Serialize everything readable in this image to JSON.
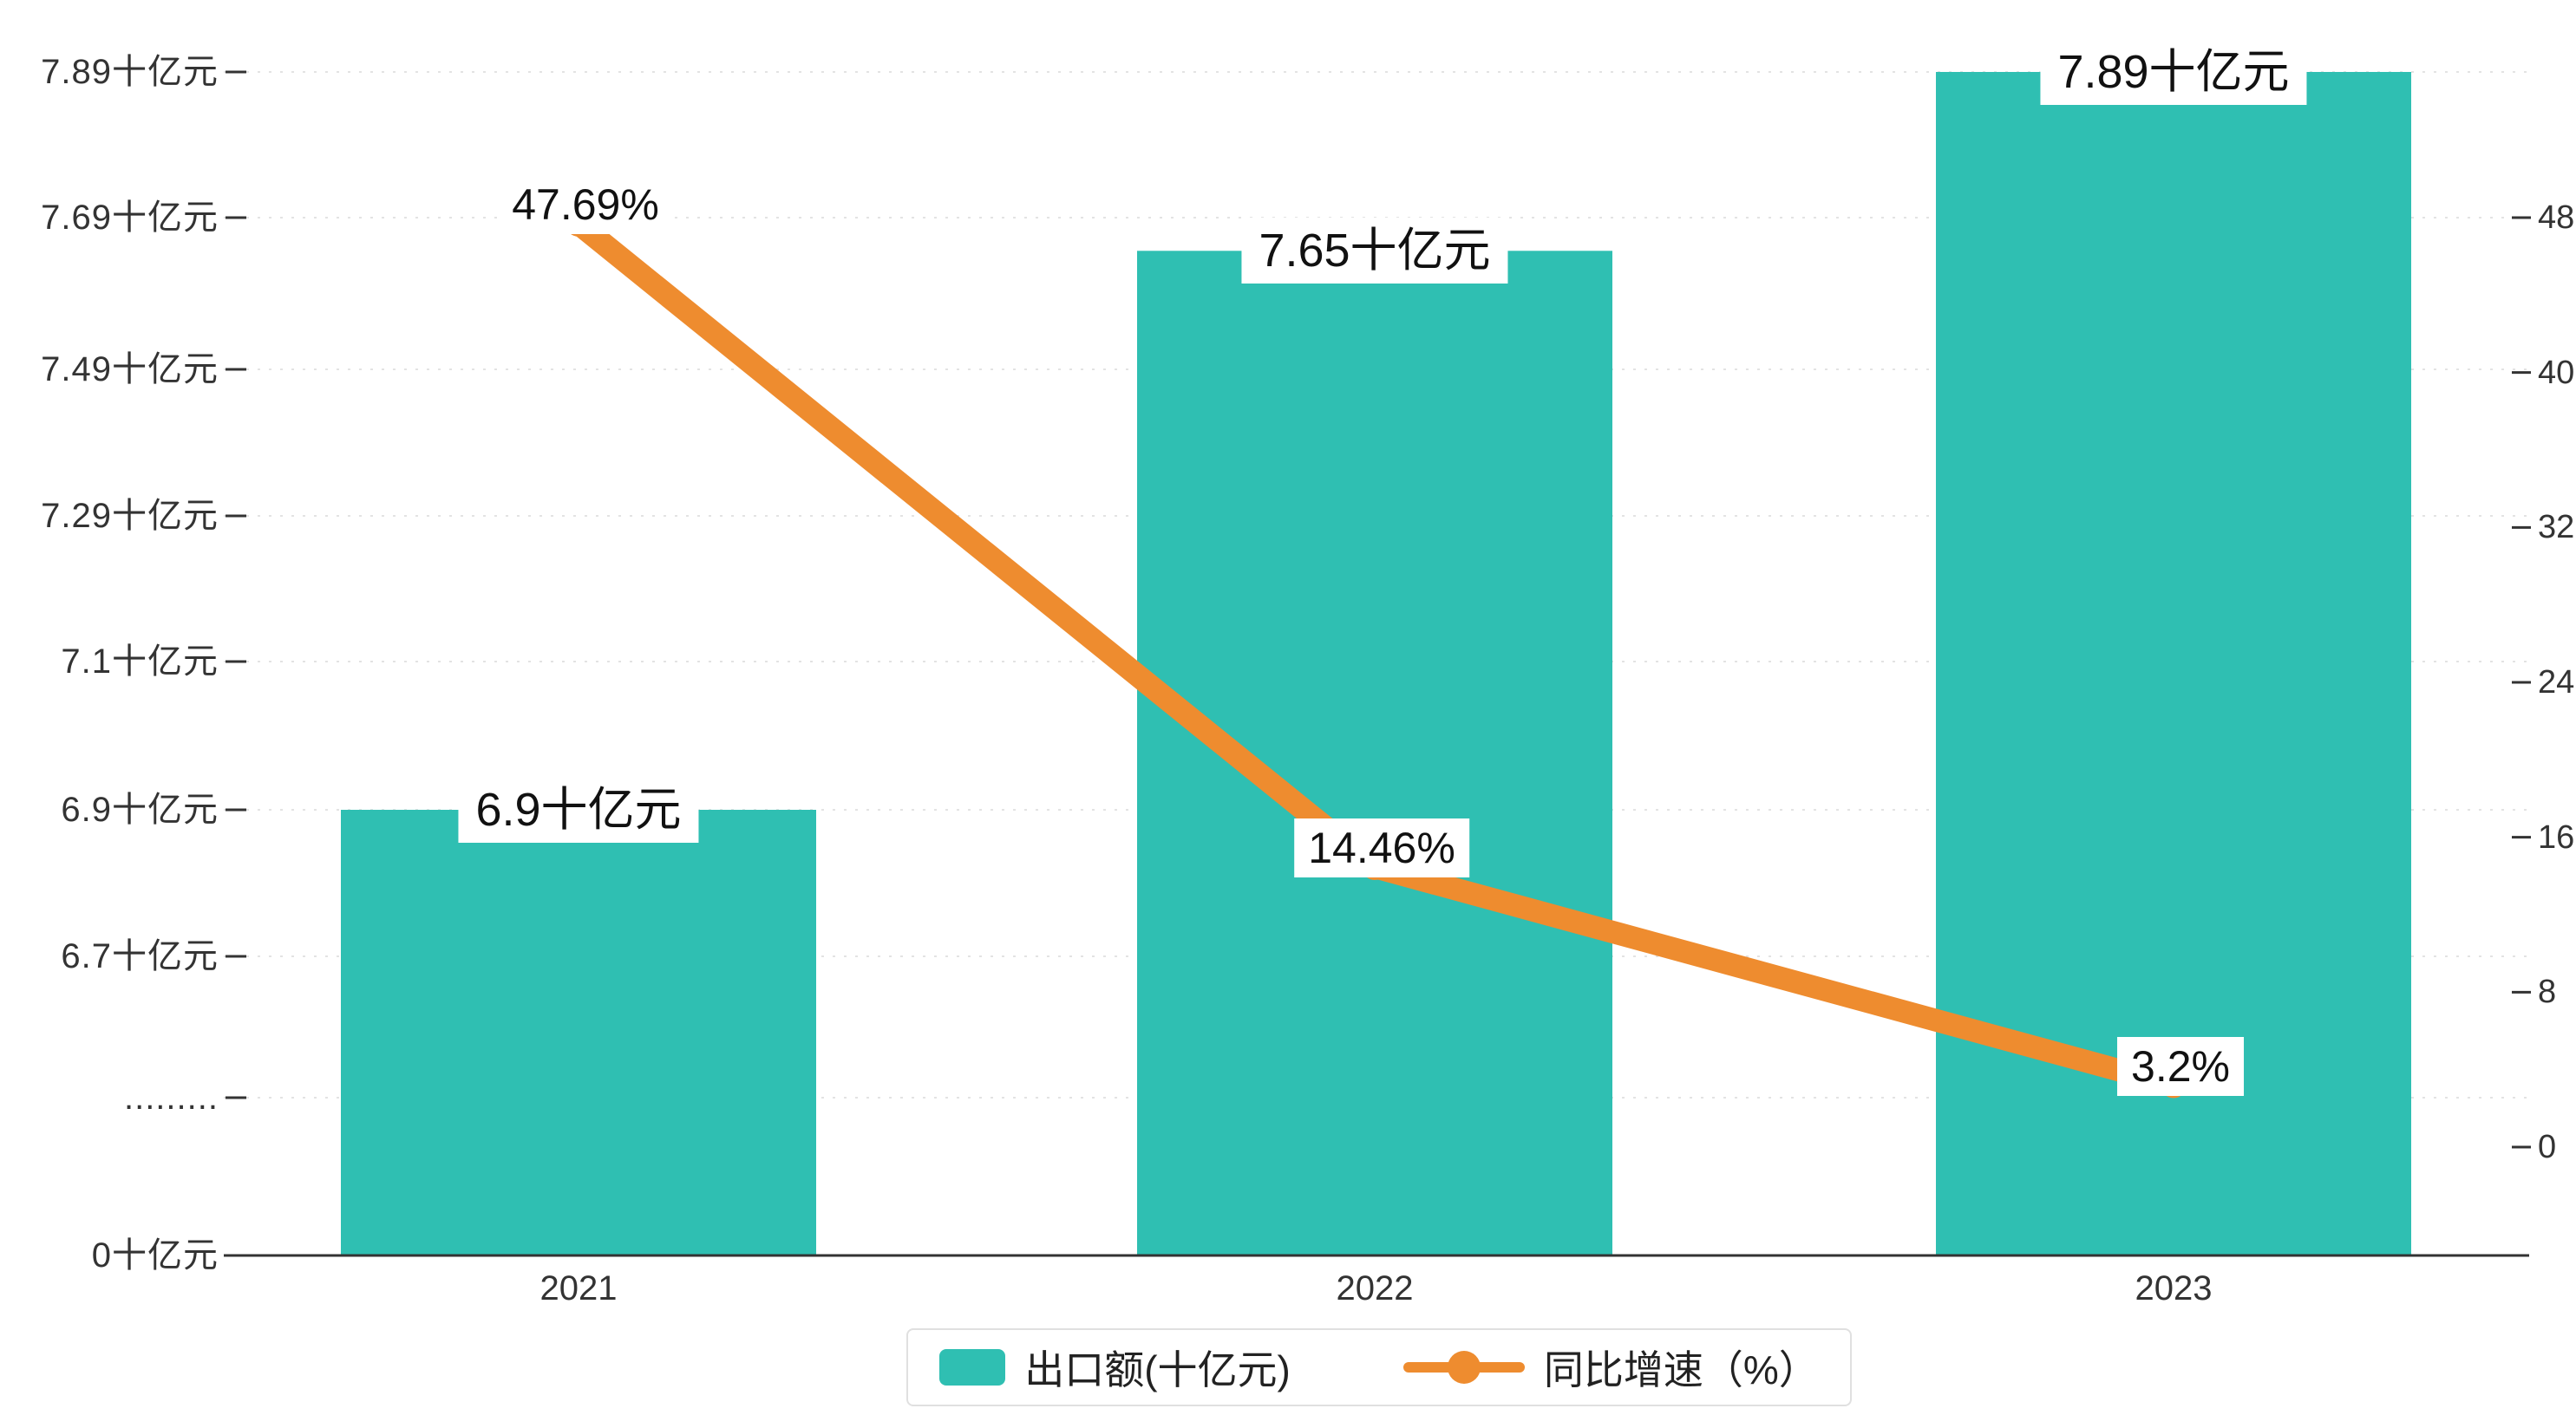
{
  "chart_data": {
    "type": "bar+line",
    "categories": [
      "2021",
      "2022",
      "2023"
    ],
    "series": [
      {
        "name": "出口额(十亿元)",
        "type": "bar",
        "axis": "left",
        "values": [
          6.9,
          7.65,
          7.89
        ],
        "labels": [
          "6.9十亿元",
          "7.65十亿元",
          "7.89十亿元"
        ]
      },
      {
        "name": "同比增速（%）",
        "type": "line",
        "axis": "right",
        "values": [
          47.69,
          14.46,
          3.2
        ],
        "labels": [
          "47.69%",
          "14.46%",
          "3.2%"
        ]
      }
    ],
    "left_axis": {
      "tick_labels": [
        "7.89十亿元",
        "7.69十亿元",
        "7.49十亿元",
        "7.29十亿元",
        "7.1十亿元",
        "6.9十亿元",
        "6.7十亿元",
        ".........",
        "0十亿元"
      ],
      "broken_axis": true,
      "unit": "十亿元"
    },
    "right_axis": {
      "tick_labels": [
        "48",
        "40",
        "32",
        "24",
        "16",
        "8",
        "0"
      ],
      "values": [
        48,
        40,
        32,
        24,
        16,
        8,
        0
      ],
      "range": [
        0,
        48
      ]
    },
    "grid": true,
    "legend_position": "bottom"
  },
  "legend": {
    "bar_label": "出口额(十亿元)",
    "line_label": "同比增速（%）"
  },
  "colors": {
    "bar": "#2fbfb2",
    "line": "#ee8c2f",
    "text": "#222222",
    "axis": "#333333",
    "grid": "#e3e3e3",
    "label_bg": "#ffffff",
    "legend_border": "#e0e0e0"
  }
}
